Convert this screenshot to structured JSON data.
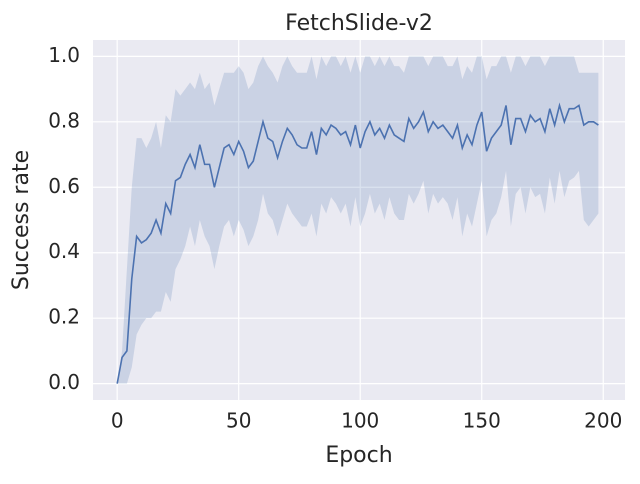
{
  "chart_data": {
    "type": "line",
    "title": "FetchSlide-v2",
    "xlabel": "Epoch",
    "ylabel": "Success rate",
    "x": [
      0,
      2,
      4,
      6,
      8,
      10,
      12,
      14,
      16,
      18,
      20,
      22,
      24,
      26,
      28,
      30,
      32,
      34,
      36,
      38,
      40,
      42,
      44,
      46,
      48,
      50,
      52,
      54,
      56,
      58,
      60,
      62,
      64,
      66,
      68,
      70,
      72,
      74,
      76,
      78,
      80,
      82,
      84,
      86,
      88,
      90,
      92,
      94,
      96,
      98,
      100,
      102,
      104,
      106,
      108,
      110,
      112,
      114,
      116,
      118,
      120,
      122,
      124,
      126,
      128,
      130,
      132,
      134,
      136,
      138,
      140,
      142,
      144,
      146,
      148,
      150,
      152,
      154,
      156,
      158,
      160,
      162,
      164,
      166,
      168,
      170,
      172,
      174,
      176,
      178,
      180,
      182,
      184,
      186,
      188,
      190,
      192,
      194,
      196,
      198
    ],
    "series": [
      {
        "color": "#4c72b0",
        "values": [
          0,
          0.08,
          0.1,
          0.32,
          0.45,
          0.43,
          0.44,
          0.46,
          0.5,
          0.46,
          0.55,
          0.52,
          0.62,
          0.63,
          0.67,
          0.7,
          0.66,
          0.73,
          0.67,
          0.67,
          0.6,
          0.66,
          0.72,
          0.73,
          0.7,
          0.74,
          0.71,
          0.66,
          0.68,
          0.74,
          0.8,
          0.75,
          0.74,
          0.69,
          0.74,
          0.78,
          0.76,
          0.73,
          0.72,
          0.72,
          0.77,
          0.7,
          0.78,
          0.76,
          0.79,
          0.78,
          0.76,
          0.77,
          0.73,
          0.79,
          0.72,
          0.77,
          0.8,
          0.76,
          0.78,
          0.75,
          0.79,
          0.76,
          0.75,
          0.74,
          0.81,
          0.78,
          0.8,
          0.83,
          0.77,
          0.8,
          0.78,
          0.79,
          0.77,
          0.75,
          0.79,
          0.72,
          0.76,
          0.73,
          0.79,
          0.83,
          0.71,
          0.75,
          0.77,
          0.79,
          0.85,
          0.73,
          0.81,
          0.81,
          0.77,
          0.82,
          0.8,
          0.81,
          0.77,
          0.84,
          0.79,
          0.85,
          0.8,
          0.84,
          0.84,
          0.85,
          0.79,
          0.8,
          0.8,
          0.79
        ],
        "lower": [
          0,
          0,
          0,
          0.05,
          0.15,
          0.18,
          0.2,
          0.2,
          0.22,
          0.22,
          0.28,
          0.25,
          0.35,
          0.38,
          0.42,
          0.48,
          0.42,
          0.5,
          0.45,
          0.42,
          0.35,
          0.42,
          0.48,
          0.5,
          0.45,
          0.5,
          0.47,
          0.42,
          0.45,
          0.5,
          0.58,
          0.52,
          0.5,
          0.45,
          0.5,
          0.55,
          0.52,
          0.5,
          0.48,
          0.48,
          0.52,
          0.45,
          0.55,
          0.52,
          0.57,
          0.55,
          0.52,
          0.55,
          0.48,
          0.57,
          0.48,
          0.52,
          0.58,
          0.52,
          0.55,
          0.5,
          0.57,
          0.52,
          0.5,
          0.5,
          0.58,
          0.55,
          0.58,
          0.62,
          0.52,
          0.58,
          0.55,
          0.57,
          0.55,
          0.5,
          0.57,
          0.45,
          0.52,
          0.48,
          0.55,
          0.62,
          0.45,
          0.5,
          0.52,
          0.57,
          0.65,
          0.48,
          0.58,
          0.6,
          0.52,
          0.6,
          0.57,
          0.58,
          0.52,
          0.63,
          0.55,
          0.65,
          0.57,
          0.62,
          0.63,
          0.65,
          0.5,
          0.48,
          0.5,
          0.52
        ],
        "upper": [
          0,
          0.1,
          0.35,
          0.6,
          0.75,
          0.75,
          0.72,
          0.75,
          0.8,
          0.72,
          0.82,
          0.8,
          0.9,
          0.88,
          0.9,
          0.92,
          0.9,
          0.95,
          0.9,
          0.92,
          0.85,
          0.9,
          0.95,
          0.95,
          0.95,
          0.97,
          0.95,
          0.9,
          0.92,
          0.97,
          1,
          0.97,
          0.95,
          0.92,
          0.97,
          1,
          0.97,
          0.95,
          0.95,
          0.95,
          1,
          0.93,
          1,
          0.97,
          1,
          1,
          0.97,
          1,
          0.95,
          1,
          0.95,
          1,
          1,
          0.97,
          1,
          0.97,
          1,
          0.97,
          0.97,
          0.95,
          1,
          1,
          1,
          1,
          0.97,
          1,
          1,
          1,
          0.97,
          0.97,
          1,
          0.93,
          0.97,
          0.95,
          1,
          1,
          0.93,
          0.97,
          0.97,
          1,
          1,
          0.95,
          1,
          1,
          0.97,
          1,
          1,
          1,
          0.97,
          1,
          1,
          1,
          1,
          1,
          1,
          0.95,
          0.95,
          0.95,
          0.95,
          0.95
        ]
      }
    ],
    "xlim": [
      -9.95,
      208.95
    ],
    "xticks": [
      0,
      50,
      100,
      150,
      200
    ],
    "ylim": [
      -0.05,
      1.05
    ],
    "yticks": [
      {
        "value": 0,
        "label": "0.0"
      },
      0.2,
      0.4,
      0.6,
      0.8,
      {
        "value": 1,
        "label": "1.0"
      }
    ],
    "grid": true
  }
}
